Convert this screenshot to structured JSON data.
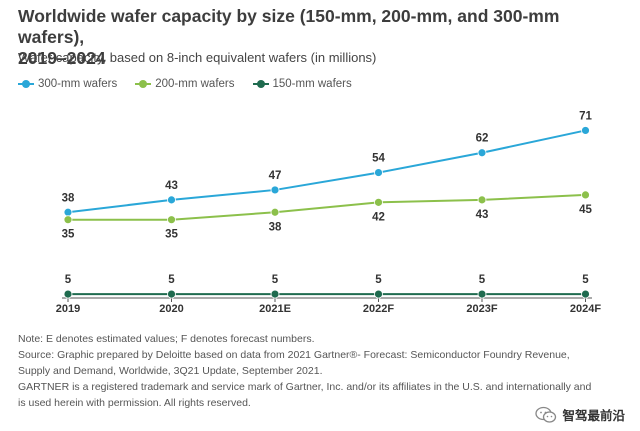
{
  "header": {
    "title_line1": "Worldwide wafer capacity by size (150-mm, 200-mm, and 300-mm wafers),",
    "title_line2": "2019–2024",
    "subtitle": "Wafer capacity, based on 8-inch equivalent wafers (in millions)"
  },
  "colors": {
    "series_300": "#2aa7d8",
    "series_200": "#8cc04b",
    "series_150": "#1f6b4f",
    "axis": "#555555",
    "text": "#333333"
  },
  "chart_data": {
    "type": "line",
    "title": "Worldwide wafer capacity by size (150-mm, 200-mm, and 300-mm wafers), 2019–2024",
    "xlabel": "",
    "ylabel": "Wafer capacity, based on 8-inch equivalent wafers (in millions)",
    "categories": [
      "2019",
      "2020",
      "2021E",
      "2022F",
      "2023F",
      "2024F"
    ],
    "ylim": [
      0,
      75
    ],
    "grid": false,
    "legend": "top-left",
    "series": [
      {
        "name": "300-mm wafers",
        "color": "#2aa7d8",
        "values": [
          38,
          43,
          47,
          54,
          62,
          71
        ],
        "labels": [
          "38",
          "43",
          "47",
          "54",
          "62",
          "71"
        ],
        "label_position": "above"
      },
      {
        "name": "200-mm wafers",
        "color": "#8cc04b",
        "values": [
          35,
          35,
          38,
          42,
          43,
          45
        ],
        "labels": [
          "35",
          "35",
          "38",
          "42",
          "43",
          "45"
        ],
        "label_position": "below"
      },
      {
        "name": "150-mm wafers",
        "color": "#1f6b4f",
        "values": [
          5,
          5,
          5,
          5,
          5,
          5
        ],
        "labels": [
          "5",
          "5",
          "5",
          "5",
          "5",
          "5"
        ],
        "label_position": "above"
      }
    ]
  },
  "notes": {
    "line1": "Note: E denotes estimated values; F denotes forecast numbers.",
    "line2": "Source: Graphic prepared by Deloitte based on data from 2021 Gartner®- Forecast: Semiconductor Foundry Revenue,",
    "line3": "Supply and Demand, Worldwide, 3Q21 Update, September 2021.",
    "line4": "GARTNER is a registered trademark and service mark of Gartner, Inc. and/or its affiliates in the U.S. and internationally and",
    "line5": "is used herein with permission. All rights reserved."
  },
  "watermark": {
    "text": "智驾最前沿",
    "icon": "wechat-icon"
  }
}
